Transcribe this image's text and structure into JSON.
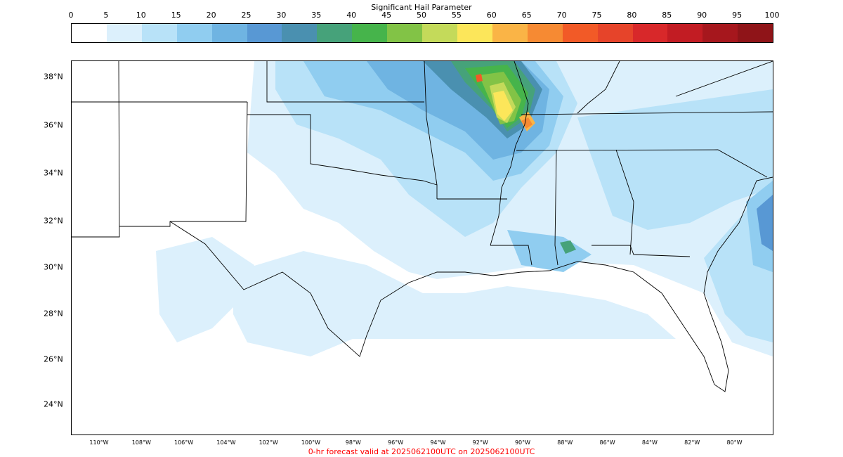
{
  "colorbar": {
    "title": "Significant Hail Parameter",
    "ticks": [
      "0",
      "5",
      "10",
      "15",
      "20",
      "25",
      "30",
      "35",
      "40",
      "45",
      "50",
      "55",
      "60",
      "65",
      "70",
      "75",
      "80",
      "85",
      "90",
      "95",
      "100"
    ],
    "colors": [
      "#ffffff",
      "#dcf0fc",
      "#b8e2f8",
      "#90cdf0",
      "#6fb4e2",
      "#5898d4",
      "#4a90b0",
      "#46a27a",
      "#46b44b",
      "#82c346",
      "#c4da5a",
      "#fce65a",
      "#fab446",
      "#f68a33",
      "#f25a27",
      "#e6442a",
      "#d8282a",
      "#c21c23",
      "#a6171d",
      "#8f1418"
    ]
  },
  "map": {
    "lat_labels": [
      "38°N",
      "36°N",
      "34°N",
      "32°N",
      "30°N",
      "28°N",
      "26°N",
      "24°N"
    ],
    "lon_labels": [
      "110°W",
      "108°W",
      "106°W",
      "104°W",
      "102°W",
      "100°W",
      "98°W",
      "96°W",
      "94°W",
      "92°W",
      "90°W",
      "88°W",
      "86°W",
      "84°W",
      "82°W",
      "80°W"
    ]
  },
  "footer": "0-hr forecast valid at 2025062100UTC on 2025062100UTC"
}
